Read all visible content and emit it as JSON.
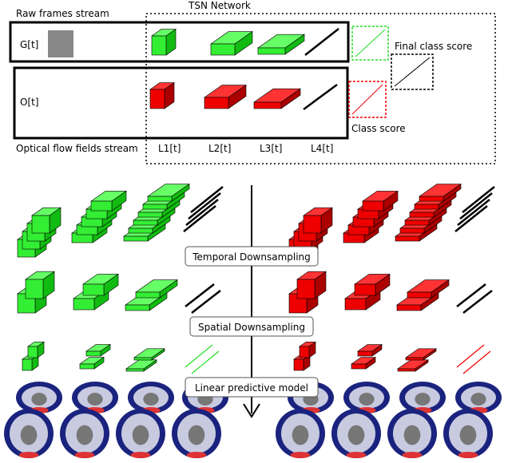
{
  "header": {
    "left": "Raw frames stream",
    "right": "TSN Network"
  },
  "streams": [
    {
      "label": "G[t]"
    },
    {
      "label": "O[t]"
    }
  ],
  "scores": {
    "final": "Final class score",
    "class": "Class score"
  },
  "bottom_label": "Optical flow fields stream",
  "layers": [
    "L1[t]",
    "L2[t]",
    "L3[t]",
    "L4[t]"
  ],
  "steps": [
    "Temporal Downsampling",
    "Spatial Downsampling",
    "Linear predictive model"
  ]
}
